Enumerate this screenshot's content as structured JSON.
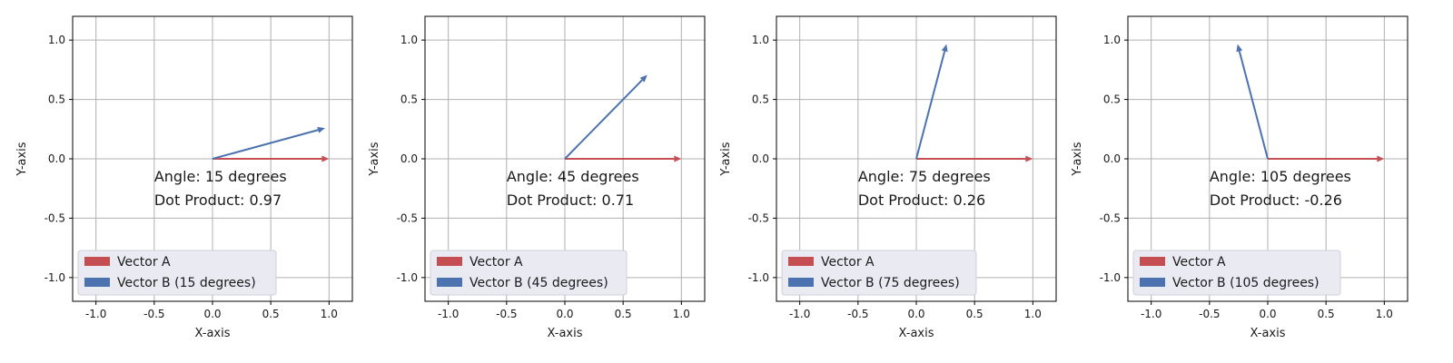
{
  "colors": {
    "vector_a": "#c44e52",
    "vector_b": "#4c72b0",
    "grid": "#b0b0b0",
    "legend_bg": "#eaeaf2"
  },
  "chart_data": [
    {
      "type": "line",
      "xlabel": "X-axis",
      "ylabel": "Y-axis",
      "xlim": [
        -1.2,
        1.2
      ],
      "ylim": [
        -1.2,
        1.2
      ],
      "xticks": [
        -1.0,
        -0.5,
        0.0,
        0.5,
        1.0
      ],
      "yticks": [
        -1.0,
        -0.5,
        0.0,
        0.5,
        1.0
      ],
      "grid": true,
      "legend_placement": "lower-left",
      "series": [
        {
          "name": "Vector A",
          "x": [
            0,
            1.0
          ],
          "y": [
            0,
            0.0
          ]
        },
        {
          "name": "Vector B (15 degrees)",
          "x": [
            0,
            0.966
          ],
          "y": [
            0,
            0.259
          ]
        }
      ],
      "annotations": [
        "Angle: 15 degrees",
        "Dot Product: 0.97"
      ]
    },
    {
      "type": "line",
      "xlabel": "X-axis",
      "ylabel": "Y-axis",
      "xlim": [
        -1.2,
        1.2
      ],
      "ylim": [
        -1.2,
        1.2
      ],
      "xticks": [
        -1.0,
        -0.5,
        0.0,
        0.5,
        1.0
      ],
      "yticks": [
        -1.0,
        -0.5,
        0.0,
        0.5,
        1.0
      ],
      "grid": true,
      "legend_placement": "lower-left",
      "series": [
        {
          "name": "Vector A",
          "x": [
            0,
            1.0
          ],
          "y": [
            0,
            0.0
          ]
        },
        {
          "name": "Vector B (45 degrees)",
          "x": [
            0,
            0.707
          ],
          "y": [
            0,
            0.707
          ]
        }
      ],
      "annotations": [
        "Angle: 45 degrees",
        "Dot Product: 0.71"
      ]
    },
    {
      "type": "line",
      "xlabel": "X-axis",
      "ylabel": "Y-axis",
      "xlim": [
        -1.2,
        1.2
      ],
      "ylim": [
        -1.2,
        1.2
      ],
      "xticks": [
        -1.0,
        -0.5,
        0.0,
        0.5,
        1.0
      ],
      "yticks": [
        -1.0,
        -0.5,
        0.0,
        0.5,
        1.0
      ],
      "grid": true,
      "legend_placement": "lower-left",
      "series": [
        {
          "name": "Vector A",
          "x": [
            0,
            1.0
          ],
          "y": [
            0,
            0.0
          ]
        },
        {
          "name": "Vector B (75 degrees)",
          "x": [
            0,
            0.259
          ],
          "y": [
            0,
            0.966
          ]
        }
      ],
      "annotations": [
        "Angle: 75 degrees",
        "Dot Product: 0.26"
      ]
    },
    {
      "type": "line",
      "xlabel": "X-axis",
      "ylabel": "Y-axis",
      "xlim": [
        -1.2,
        1.2
      ],
      "ylim": [
        -1.2,
        1.2
      ],
      "xticks": [
        -1.0,
        -0.5,
        0.0,
        0.5,
        1.0
      ],
      "yticks": [
        -1.0,
        -0.5,
        0.0,
        0.5,
        1.0
      ],
      "grid": true,
      "legend_placement": "lower-left",
      "series": [
        {
          "name": "Vector A",
          "x": [
            0,
            1.0
          ],
          "y": [
            0,
            0.0
          ]
        },
        {
          "name": "Vector B (105 degrees)",
          "x": [
            0,
            -0.259
          ],
          "y": [
            0,
            0.966
          ]
        }
      ],
      "annotations": [
        "Angle: 105 degrees",
        "Dot Product: -0.26"
      ]
    }
  ]
}
